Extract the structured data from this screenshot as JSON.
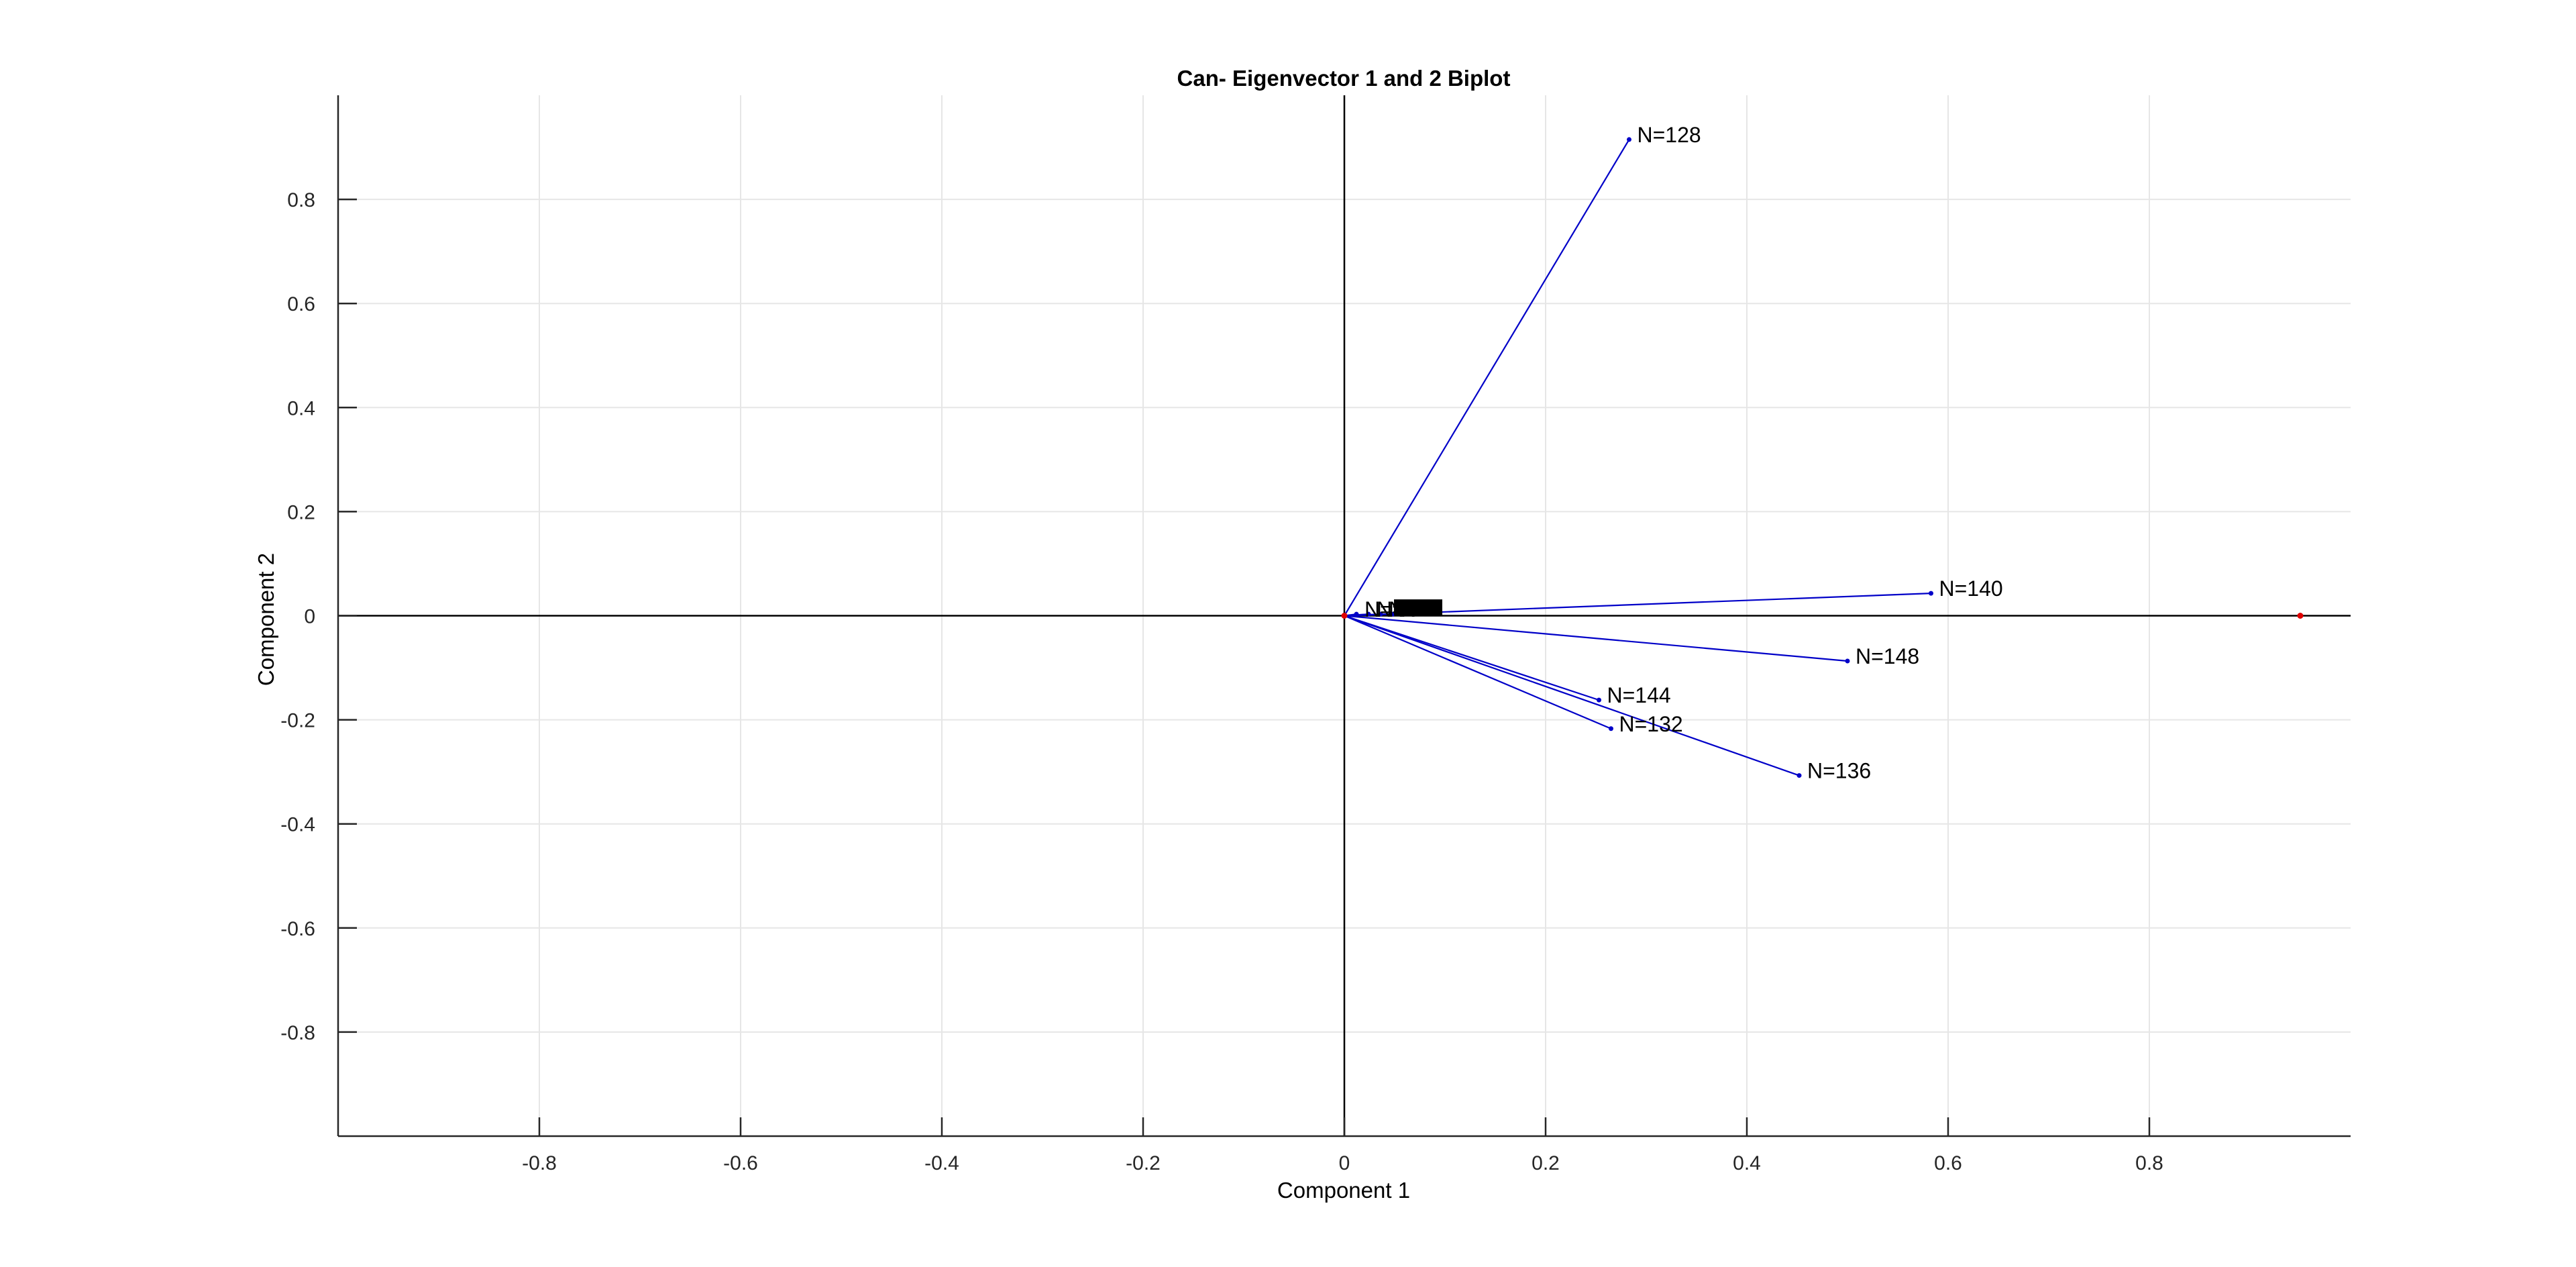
{
  "chart_data": {
    "type": "scatter",
    "subtype": "biplot",
    "title": "Can- Eigenvector 1 and 2 Biplot",
    "xlabel": "Component 1",
    "ylabel": "Component 2",
    "xlim": [
      -1,
      1
    ],
    "ylim": [
      -1,
      1
    ],
    "xticks": [
      -0.8,
      -0.6,
      -0.4,
      -0.2,
      0,
      0.2,
      0.4,
      0.6,
      0.8
    ],
    "yticks": [
      -0.8,
      -0.6,
      -0.4,
      -0.2,
      0,
      0.2,
      0.4,
      0.6,
      0.8
    ],
    "xtick_labels": [
      "-0.8",
      "-0.6",
      "-0.4",
      "-0.2",
      "0",
      "0.2",
      "0.4",
      "0.6",
      "0.8"
    ],
    "ytick_labels": [
      "-0.8",
      "-0.6",
      "-0.4",
      "-0.2",
      "0",
      "0.2",
      "0.4",
      "0.6",
      "0.8"
    ],
    "grid": true,
    "legend": "none",
    "vector_color": "#0000c8",
    "point_color": "#e00000",
    "axis_color": "#262626",
    "grid_color": "#e6e6e6",
    "vectors": [
      {
        "label": "N=128",
        "x": 0.283,
        "y": 0.915
      },
      {
        "label": "N=140",
        "x": 0.583,
        "y": 0.043
      },
      {
        "label": "N=148",
        "x": 0.5,
        "y": -0.087
      },
      {
        "label": "N=144",
        "x": 0.253,
        "y": -0.162
      },
      {
        "label": "N=132",
        "x": 0.265,
        "y": -0.217
      },
      {
        "label": "N=136",
        "x": 0.452,
        "y": -0.307
      },
      {
        "label": "N=",
        "x": 0.012,
        "y": 0.003,
        "label_obscured": true
      },
      {
        "label": "N=",
        "x": 0.024,
        "y": 0.003,
        "label_obscured": true
      },
      {
        "label": "N=",
        "x": 0.036,
        "y": 0.003,
        "label_obscured": true
      },
      {
        "label": "N=",
        "x": 0.048,
        "y": 0.003,
        "label_obscured": true
      }
    ],
    "points": [
      {
        "x": 0,
        "y": 0
      },
      {
        "x": 0.95,
        "y": 0
      }
    ]
  }
}
